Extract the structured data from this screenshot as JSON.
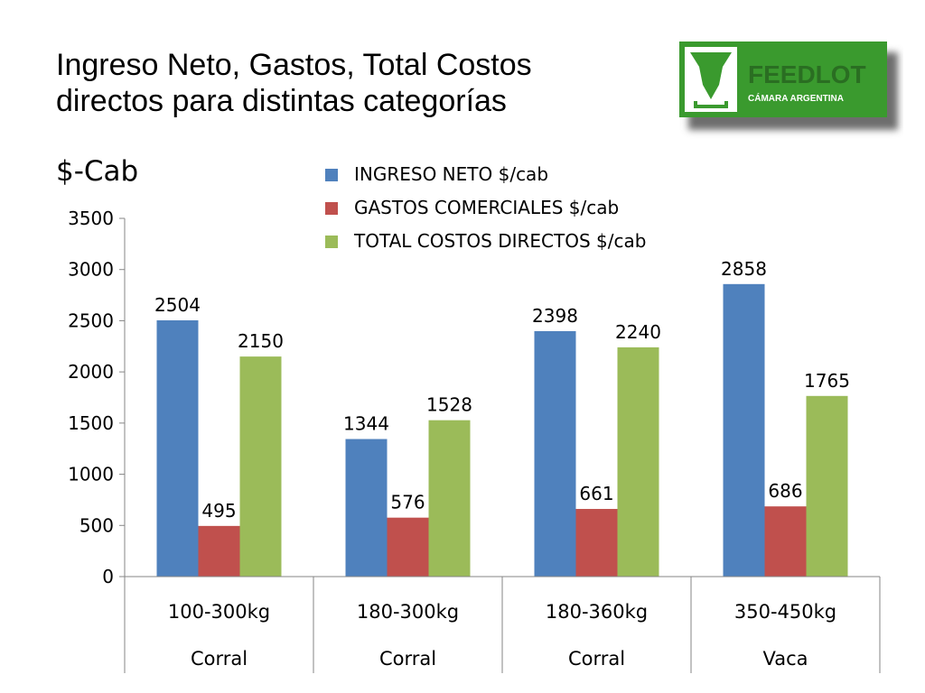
{
  "slide": {
    "title_line1": "Ingreso Neto, Gastos, Total Costos",
    "title_line2": "directos para distintas categorías",
    "unit_label": "$-Cab"
  },
  "logo": {
    "text_main": "FEEDLOT",
    "text_sub": "CÁMARA ARGENTINA",
    "colors": {
      "green": "#3a9a2e",
      "dark": "#2a6e22",
      "shadow": "#7a7a7a"
    }
  },
  "chart_data": {
    "type": "bar",
    "categories": [
      "100-300kg",
      "180-300kg",
      "180-360kg",
      "350-450kg"
    ],
    "category_groups": [
      "Corral",
      "Corral",
      "Corral",
      "Vaca"
    ],
    "series": [
      {
        "name": "INGRESO NETO $/cab",
        "color": "#4f81bd",
        "values": [
          2504,
          1344,
          2398,
          2858
        ]
      },
      {
        "name": "GASTOS COMERCIALES $/cab",
        "color": "#c0504d",
        "values": [
          495,
          576,
          661,
          686
        ]
      },
      {
        "name": "TOTAL COSTOS DIRECTOS $/cab",
        "color": "#9bbb59",
        "values": [
          2150,
          1528,
          2240,
          1765
        ]
      }
    ],
    "ylim": [
      0,
      3500
    ],
    "yticks": [
      0,
      500,
      1000,
      1500,
      2000,
      2500,
      3000,
      3500
    ],
    "ylabel": "$-Cab",
    "grid": false,
    "legend": "top-center",
    "data_labels": true
  }
}
